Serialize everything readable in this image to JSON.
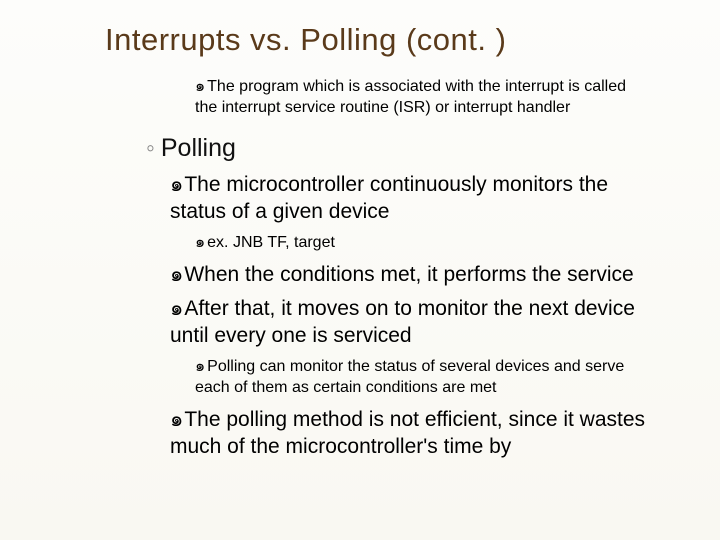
{
  "title": "Interrupts vs. Polling (cont. )",
  "pre_polling_bullet": "The program which is associated with the interrupt is called the interrupt service routine (ISR) or interrupt handler",
  "polling": {
    "header_marker": "◦",
    "header": "Polling",
    "b1": "The microcontroller continuously monitors the status of a given device",
    "b1_sub": "ex. JNB TF, target",
    "b2": "When the conditions met, it performs the service",
    "b3": "After that, it moves on to monitor the next device until every one is serviced",
    "b3_sub": "Polling can monitor the status of several devices and serve each of them as certain conditions are met",
    "b4": "The polling method is not efficient, since it wastes much of the microcontroller's time by"
  },
  "glyph": "๑",
  "colors": {
    "title": "#5a3a1a",
    "text": "#000000",
    "bg_top": "#fdfdfb",
    "bg_bottom": "#f9f8f2"
  },
  "typography": {
    "title_fontsize": 31,
    "header_fontsize": 25,
    "body_fontsize": 21,
    "sub_fontsize": 16,
    "font_family": "Arial"
  }
}
